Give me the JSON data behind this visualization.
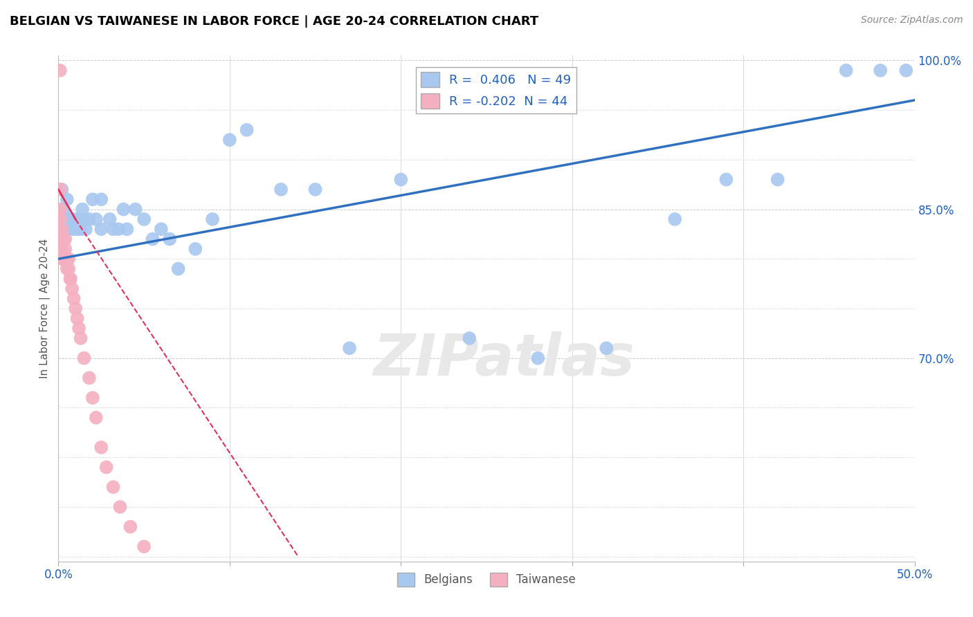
{
  "title": "BELGIAN VS TAIWANESE IN LABOR FORCE | AGE 20-24 CORRELATION CHART",
  "source": "Source: ZipAtlas.com",
  "ylabel": "In Labor Force | Age 20-24",
  "xlim": [
    0.0,
    0.5
  ],
  "ylim": [
    0.495,
    1.005
  ],
  "blue_R": 0.406,
  "blue_N": 49,
  "pink_R": -0.202,
  "pink_N": 44,
  "blue_color": "#a8c8f0",
  "pink_color": "#f4b0c0",
  "blue_line_color": "#3070c0",
  "pink_line_color": "#e03060",
  "grid_color": "#cccccc",
  "watermark": "ZIPatlas",
  "blue_scatter_x": [
    0.001,
    0.002,
    0.003,
    0.004,
    0.005,
    0.006,
    0.007,
    0.008,
    0.009,
    0.01,
    0.011,
    0.012,
    0.013,
    0.014,
    0.015,
    0.016,
    0.018,
    0.02,
    0.022,
    0.025,
    0.025,
    0.03,
    0.032,
    0.035,
    0.038,
    0.04,
    0.045,
    0.05,
    0.055,
    0.06,
    0.065,
    0.07,
    0.08,
    0.09,
    0.1,
    0.11,
    0.13,
    0.15,
    0.17,
    0.2,
    0.24,
    0.28,
    0.32,
    0.36,
    0.39,
    0.42,
    0.46,
    0.48,
    0.495
  ],
  "blue_scatter_y": [
    0.83,
    0.87,
    0.85,
    0.84,
    0.86,
    0.84,
    0.83,
    0.84,
    0.83,
    0.84,
    0.83,
    0.84,
    0.83,
    0.85,
    0.84,
    0.83,
    0.84,
    0.86,
    0.84,
    0.83,
    0.86,
    0.84,
    0.83,
    0.83,
    0.85,
    0.83,
    0.85,
    0.84,
    0.82,
    0.83,
    0.82,
    0.79,
    0.81,
    0.84,
    0.92,
    0.93,
    0.87,
    0.87,
    0.71,
    0.88,
    0.72,
    0.7,
    0.71,
    0.84,
    0.88,
    0.88,
    0.99,
    0.99,
    0.99
  ],
  "pink_scatter_x": [
    0.001,
    0.001,
    0.001,
    0.001,
    0.001,
    0.001,
    0.001,
    0.001,
    0.001,
    0.001,
    0.001,
    0.001,
    0.002,
    0.002,
    0.002,
    0.002,
    0.002,
    0.003,
    0.003,
    0.004,
    0.004,
    0.005,
    0.005,
    0.005,
    0.006,
    0.006,
    0.007,
    0.007,
    0.008,
    0.009,
    0.01,
    0.011,
    0.012,
    0.013,
    0.015,
    0.018,
    0.02,
    0.022,
    0.025,
    0.028,
    0.032,
    0.036,
    0.042,
    0.05
  ],
  "pink_scatter_y": [
    0.99,
    0.87,
    0.85,
    0.84,
    0.84,
    0.84,
    0.83,
    0.83,
    0.83,
    0.83,
    0.82,
    0.82,
    0.83,
    0.82,
    0.82,
    0.81,
    0.8,
    0.82,
    0.8,
    0.82,
    0.81,
    0.8,
    0.8,
    0.79,
    0.8,
    0.79,
    0.78,
    0.78,
    0.77,
    0.76,
    0.75,
    0.74,
    0.73,
    0.72,
    0.7,
    0.68,
    0.66,
    0.64,
    0.61,
    0.59,
    0.57,
    0.55,
    0.53,
    0.51
  ],
  "blue_line_x0": 0.0,
  "blue_line_y0": 0.8,
  "blue_line_x1": 0.5,
  "blue_line_y1": 0.96,
  "pink_line_solid_x0": 0.0,
  "pink_line_solid_y0": 0.87,
  "pink_line_solid_x1": 0.01,
  "pink_line_solid_y1": 0.84,
  "pink_line_dash_x0": 0.01,
  "pink_line_dash_y0": 0.84,
  "pink_line_dash_x1": 0.14,
  "pink_line_dash_y1": 0.5,
  "ytick_positions": [
    0.5,
    0.55,
    0.6,
    0.65,
    0.7,
    0.75,
    0.8,
    0.85,
    0.9,
    0.95,
    1.0
  ],
  "ytick_labels": [
    "",
    "",
    "",
    "",
    "70.0%",
    "",
    "",
    "85.0%",
    "",
    "",
    "100.0%"
  ],
  "xtick_positions": [
    0.0,
    0.1,
    0.2,
    0.3,
    0.4,
    0.5
  ],
  "xtick_labels": [
    "0.0%",
    "",
    "",
    "",
    "",
    "50.0%"
  ],
  "hgrid_dotted": [
    0.5,
    0.55,
    0.6,
    0.65,
    0.75,
    0.8,
    0.9,
    0.95
  ],
  "hgrid_dashed": [
    0.7,
    0.85,
    1.0
  ]
}
